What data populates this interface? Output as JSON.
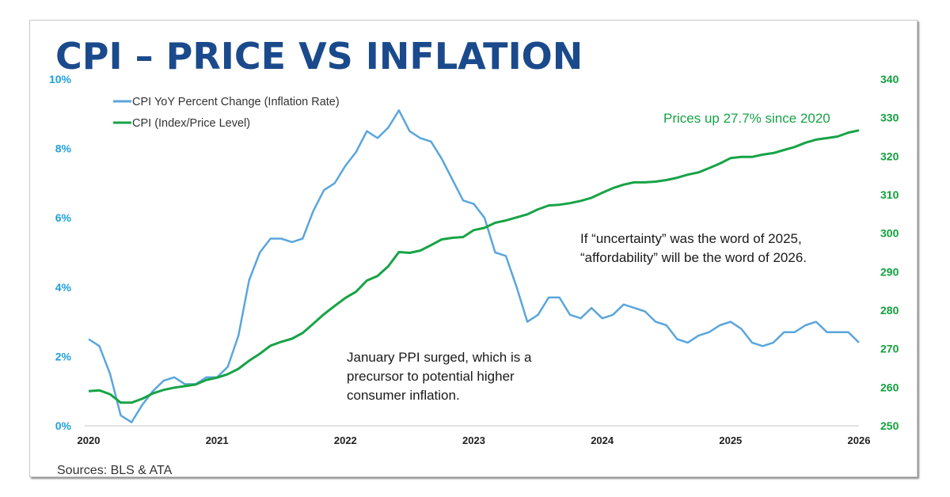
{
  "title": "CPI – PRICE VS INFLATION",
  "source": "Sources: BLS & ATA",
  "annotations": {
    "prices": "Prices up 27.7% since 2020",
    "uncertainty": "If “uncertainty” was the word of 2025, “affordability” will be the word of 2026.",
    "ppi": "January PPI surged, which is a precursor to potential higher consumer inflation."
  },
  "colors": {
    "title": "#1b4a8c",
    "inflation": "#5aa6dc",
    "cpi": "#17a346",
    "left_axis": "#1ea0dc",
    "right_axis": "#12a13e"
  },
  "chart_data": {
    "type": "line",
    "x_start": "2020-01",
    "x_frequency": "monthly",
    "x_ticks": [
      "2020",
      "2021",
      "2022",
      "2023",
      "2024",
      "2025",
      "2026"
    ],
    "legend_placement": "top-left",
    "grid": false,
    "y_left": {
      "range": [
        0,
        10
      ],
      "ticks": [
        "0%",
        "2%",
        "4%",
        "6%",
        "8%",
        "10%"
      ]
    },
    "y_right": {
      "range": [
        250,
        340
      ],
      "ticks": [
        "250",
        "260",
        "270",
        "280",
        "290",
        "300",
        "310",
        "320",
        "330",
        "340"
      ]
    },
    "series": [
      {
        "name": "CPI YoY Percent Change (Inflation Rate)",
        "axis": "left",
        "values": [
          2.5,
          2.3,
          1.5,
          0.3,
          0.1,
          0.6,
          1.0,
          1.3,
          1.4,
          1.2,
          1.2,
          1.4,
          1.4,
          1.7,
          2.6,
          4.2,
          5.0,
          5.4,
          5.4,
          5.3,
          5.4,
          6.2,
          6.8,
          7.0,
          7.5,
          7.9,
          8.5,
          8.3,
          8.6,
          9.1,
          8.5,
          8.3,
          8.2,
          7.7,
          7.1,
          6.5,
          6.4,
          6.0,
          5.0,
          4.9,
          4.0,
          3.0,
          3.2,
          3.7,
          3.7,
          3.2,
          3.1,
          3.4,
          3.1,
          3.2,
          3.5,
          3.4,
          3.3,
          3.0,
          2.9,
          2.5,
          2.4,
          2.6,
          2.7,
          2.9,
          3.0,
          2.8,
          2.4,
          2.3,
          2.4,
          2.7,
          2.7,
          2.9,
          3.0,
          2.7,
          2.7,
          2.7,
          2.4
        ]
      },
      {
        "name": "CPI (Index/Price Level)",
        "axis": "right",
        "values": [
          259.0,
          259.2,
          258.2,
          256.0,
          256.0,
          257.0,
          258.4,
          259.3,
          259.9,
          260.3,
          260.7,
          261.9,
          262.5,
          263.4,
          264.8,
          266.9,
          268.7,
          270.8,
          271.8,
          272.6,
          274.1,
          276.5,
          279.0,
          281.1,
          283.2,
          284.8,
          287.7,
          288.9,
          291.4,
          295.1,
          294.9,
          295.5,
          296.9,
          298.4,
          298.8,
          299.0,
          300.8,
          301.4,
          302.7,
          303.3,
          304.1,
          304.9,
          306.2,
          307.2,
          307.4,
          307.8,
          308.4,
          309.2,
          310.5,
          311.7,
          312.6,
          313.2,
          313.2,
          313.4,
          313.8,
          314.4,
          315.2,
          315.8,
          316.9,
          318.1,
          319.5,
          319.8,
          319.8,
          320.4,
          320.8,
          321.6,
          322.4,
          323.5,
          324.3,
          324.7,
          325.1,
          326.1,
          326.7
        ]
      }
    ]
  }
}
